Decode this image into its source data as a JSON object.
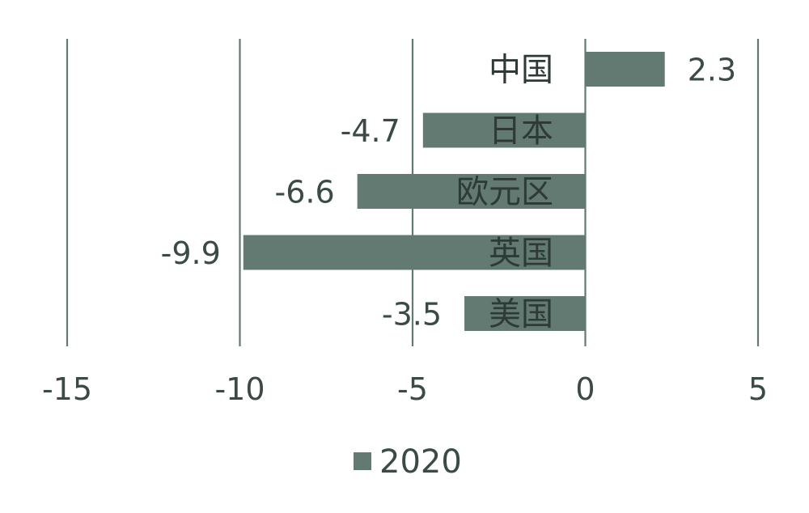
{
  "chart_data": {
    "type": "bar",
    "orientation": "horizontal",
    "categories": [
      "中国",
      "日本",
      "欧元区",
      "英国",
      "美国"
    ],
    "series": [
      {
        "name": "2020",
        "values": [
          2.3,
          -4.7,
          -6.6,
          -9.9,
          -3.5
        ]
      }
    ],
    "xlim": [
      -15,
      5
    ],
    "xticks": [
      "-15",
      "-10",
      "-5",
      "0",
      "5"
    ],
    "grid": "vertical",
    "legend_position": "bottom-center",
    "data_labels": [
      "2.3",
      "-4.7",
      "-6.6",
      "-9.9",
      "-3.5"
    ],
    "colors": {
      "bar": "#627a72",
      "grid": "#627a72",
      "text": "#3a4a45"
    }
  }
}
